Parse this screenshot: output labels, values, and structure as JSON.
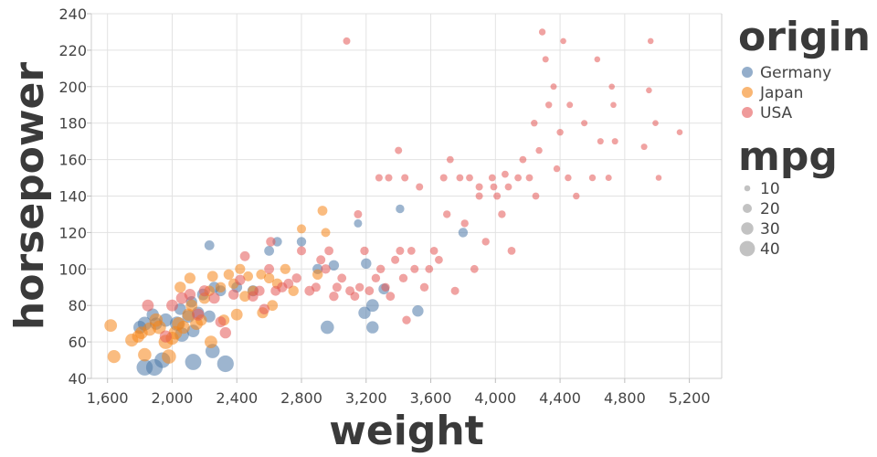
{
  "chart_data": {
    "type": "scatter",
    "xlabel": "weight",
    "ylabel": "horsepower",
    "xlim": [
      1500,
      5400
    ],
    "ylim": [
      40,
      240
    ],
    "x_ticks": [
      1600,
      2000,
      2400,
      2800,
      3200,
      3600,
      4000,
      4400,
      4800,
      5200
    ],
    "x_tick_labels": [
      "1,600",
      "2,000",
      "2,400",
      "2,800",
      "3,200",
      "3,600",
      "4,000",
      "4,400",
      "4,800",
      "5,200"
    ],
    "y_ticks": [
      40,
      60,
      80,
      100,
      120,
      140,
      160,
      180,
      200,
      220,
      240
    ],
    "y_tick_labels": [
      "40",
      "60",
      "80",
      "100",
      "120",
      "140",
      "160",
      "180",
      "200",
      "220",
      "240"
    ],
    "grid": true,
    "legend_position": "right",
    "color_legend": {
      "title": "origin",
      "entries": [
        {
          "label": "Germany",
          "color": "#4c78a8"
        },
        {
          "label": "Japan",
          "color": "#f58518"
        },
        {
          "label": "USA",
          "color": "#e45756"
        }
      ]
    },
    "size_legend": {
      "title": "mpg",
      "entries": [
        {
          "label": "10",
          "value": 10
        },
        {
          "label": "20",
          "value": 20
        },
        {
          "label": "30",
          "value": 30
        },
        {
          "label": "40",
          "value": 40
        }
      ]
    },
    "series": [
      {
        "name": "Germany",
        "color": "#4c78a8",
        "points": [
          [
            1830,
            46,
            43
          ],
          [
            1890,
            46,
            44
          ],
          [
            1940,
            50,
            41
          ],
          [
            2130,
            49,
            43
          ],
          [
            2330,
            48,
            44
          ],
          [
            1800,
            68,
            32
          ],
          [
            1830,
            70,
            35
          ],
          [
            1900,
            70,
            30
          ],
          [
            1960,
            72,
            33
          ],
          [
            2030,
            70,
            36
          ],
          [
            2100,
            74,
            31
          ],
          [
            2160,
            76,
            30
          ],
          [
            2230,
            74,
            29
          ],
          [
            2050,
            78,
            28
          ],
          [
            2120,
            82,
            27
          ],
          [
            2190,
            86,
            28
          ],
          [
            2260,
            90,
            26
          ],
          [
            2300,
            88,
            25
          ],
          [
            2060,
            64,
            36
          ],
          [
            2130,
            66,
            31
          ],
          [
            1880,
            75,
            30
          ],
          [
            2230,
            113,
            22
          ],
          [
            2600,
            110,
            22
          ],
          [
            2650,
            115,
            21
          ],
          [
            2800,
            115,
            21
          ],
          [
            2960,
            68,
            33
          ],
          [
            3190,
            76,
            30
          ],
          [
            3240,
            80,
            31
          ],
          [
            3240,
            68,
            30
          ],
          [
            3310,
            89,
            25
          ],
          [
            3200,
            103,
            24
          ],
          [
            3150,
            125,
            17
          ],
          [
            3410,
            133,
            18
          ],
          [
            3520,
            77,
            27
          ],
          [
            3800,
            120,
            21
          ],
          [
            2250,
            55,
            36
          ],
          [
            2400,
            90,
            25
          ],
          [
            2500,
            88,
            26
          ],
          [
            2900,
            100,
            23
          ],
          [
            3000,
            102,
            24
          ]
        ]
      },
      {
        "name": "Japan",
        "color": "#f58518",
        "points": [
          [
            1620,
            69,
            31
          ],
          [
            1640,
            52,
            32
          ],
          [
            1750,
            61,
            32
          ],
          [
            1790,
            63,
            30
          ],
          [
            1810,
            65,
            31
          ],
          [
            1830,
            53,
            33
          ],
          [
            1860,
            67,
            33
          ],
          [
            1900,
            72,
            33
          ],
          [
            1920,
            68,
            34
          ],
          [
            1960,
            60,
            36
          ],
          [
            1980,
            52,
            36
          ],
          [
            2000,
            62,
            32
          ],
          [
            2020,
            65,
            34
          ],
          [
            2040,
            70,
            32
          ],
          [
            2070,
            68,
            32
          ],
          [
            2100,
            75,
            30
          ],
          [
            2120,
            80,
            28
          ],
          [
            2150,
            70,
            31
          ],
          [
            2180,
            72,
            27
          ],
          [
            2200,
            84,
            27
          ],
          [
            2230,
            88,
            24
          ],
          [
            2250,
            96,
            25
          ],
          [
            2300,
            90,
            24
          ],
          [
            2320,
            72,
            26
          ],
          [
            2350,
            97,
            24
          ],
          [
            2380,
            92,
            24
          ],
          [
            2420,
            100,
            23
          ],
          [
            2470,
            96,
            22
          ],
          [
            2500,
            88,
            23
          ],
          [
            2550,
            97,
            22
          ],
          [
            2600,
            95,
            24
          ],
          [
            2650,
            92,
            24
          ],
          [
            2700,
            100,
            23
          ],
          [
            2750,
            88,
            24
          ],
          [
            2800,
            122,
            20
          ],
          [
            2930,
            132,
            22
          ],
          [
            2950,
            120,
            20
          ],
          [
            2900,
            97,
            24
          ],
          [
            2560,
            76,
            26
          ],
          [
            2620,
            80,
            25
          ],
          [
            2240,
            60,
            31
          ],
          [
            2400,
            75,
            28
          ],
          [
            2110,
            95,
            26
          ],
          [
            2450,
            85,
            25
          ],
          [
            2050,
            90,
            27
          ]
        ]
      },
      {
        "name": "USA",
        "color": "#e45756",
        "points": [
          [
            1850,
            80,
            28
          ],
          [
            1960,
            63,
            29
          ],
          [
            2000,
            80,
            28
          ],
          [
            2060,
            84,
            28
          ],
          [
            2110,
            86,
            27
          ],
          [
            2160,
            75,
            29
          ],
          [
            2200,
            88,
            26
          ],
          [
            2260,
            84,
            26
          ],
          [
            2300,
            71,
            25
          ],
          [
            2330,
            65,
            27
          ],
          [
            2380,
            86,
            24
          ],
          [
            2420,
            94,
            24
          ],
          [
            2450,
            107,
            22
          ],
          [
            2500,
            85,
            24
          ],
          [
            2540,
            88,
            23
          ],
          [
            2570,
            78,
            24
          ],
          [
            2610,
            115,
            21
          ],
          [
            2640,
            88,
            22
          ],
          [
            2680,
            90,
            23
          ],
          [
            2720,
            92,
            22
          ],
          [
            2770,
            95,
            21
          ],
          [
            2800,
            110,
            20
          ],
          [
            2850,
            88,
            22
          ],
          [
            2890,
            90,
            20
          ],
          [
            2920,
            105,
            20
          ],
          [
            2950,
            100,
            21
          ],
          [
            2970,
            110,
            19
          ],
          [
            3000,
            85,
            21
          ],
          [
            3020,
            90,
            20
          ],
          [
            3050,
            95,
            19
          ],
          [
            3080,
            225,
            14
          ],
          [
            3100,
            88,
            20
          ],
          [
            3130,
            85,
            19
          ],
          [
            3160,
            90,
            18
          ],
          [
            3190,
            110,
            18
          ],
          [
            3220,
            88,
            19
          ],
          [
            3260,
            95,
            18
          ],
          [
            3290,
            100,
            18
          ],
          [
            3320,
            90,
            18
          ],
          [
            3350,
            85,
            19
          ],
          [
            3380,
            105,
            17
          ],
          [
            3410,
            110,
            17
          ],
          [
            3430,
            95,
            18
          ],
          [
            3450,
            72,
            18
          ],
          [
            3480,
            110,
            16
          ],
          [
            3500,
            100,
            17
          ],
          [
            3530,
            145,
            14
          ],
          [
            3560,
            90,
            18
          ],
          [
            3590,
            100,
            16
          ],
          [
            3620,
            110,
            16
          ],
          [
            3650,
            105,
            16
          ],
          [
            3680,
            150,
            14
          ],
          [
            3700,
            130,
            15
          ],
          [
            3720,
            160,
            13
          ],
          [
            3750,
            88,
            17
          ],
          [
            3780,
            150,
            13
          ],
          [
            3810,
            125,
            15
          ],
          [
            3840,
            150,
            13
          ],
          [
            3870,
            100,
            16
          ],
          [
            3900,
            145,
            14
          ],
          [
            3940,
            115,
            15
          ],
          [
            3980,
            150,
            13
          ],
          [
            4010,
            140,
            14
          ],
          [
            4040,
            130,
            15
          ],
          [
            4080,
            145,
            13
          ],
          [
            4100,
            110,
            16
          ],
          [
            4140,
            150,
            13
          ],
          [
            4170,
            160,
            13
          ],
          [
            4210,
            150,
            13
          ],
          [
            4240,
            180,
            12
          ],
          [
            4250,
            140,
            13
          ],
          [
            4270,
            165,
            12
          ],
          [
            4290,
            230,
            12
          ],
          [
            4310,
            215,
            11
          ],
          [
            4330,
            190,
            12
          ],
          [
            4360,
            200,
            11
          ],
          [
            4380,
            155,
            12
          ],
          [
            4400,
            175,
            12
          ],
          [
            4420,
            225,
            10
          ],
          [
            4450,
            150,
            12
          ],
          [
            4460,
            190,
            11
          ],
          [
            4500,
            140,
            12
          ],
          [
            4550,
            180,
            11
          ],
          [
            4600,
            150,
            12
          ],
          [
            4630,
            215,
            10
          ],
          [
            4650,
            170,
            11
          ],
          [
            4700,
            150,
            11
          ],
          [
            4720,
            200,
            10
          ],
          [
            4740,
            170,
            11
          ],
          [
            4920,
            167,
            11
          ],
          [
            4950,
            198,
            10
          ],
          [
            4960,
            225,
            10
          ],
          [
            4990,
            180,
            10
          ],
          [
            5010,
            150,
            10
          ],
          [
            5140,
            175,
            10
          ],
          [
            3400,
            165,
            14
          ],
          [
            3440,
            150,
            14
          ],
          [
            3900,
            140,
            14
          ],
          [
            3990,
            145,
            13
          ],
          [
            3340,
            150,
            14
          ],
          [
            3280,
            150,
            14
          ],
          [
            4060,
            152,
            13
          ],
          [
            4730,
            190,
            10
          ],
          [
            2600,
            100,
            22
          ],
          [
            3150,
            130,
            17
          ]
        ]
      }
    ]
  }
}
